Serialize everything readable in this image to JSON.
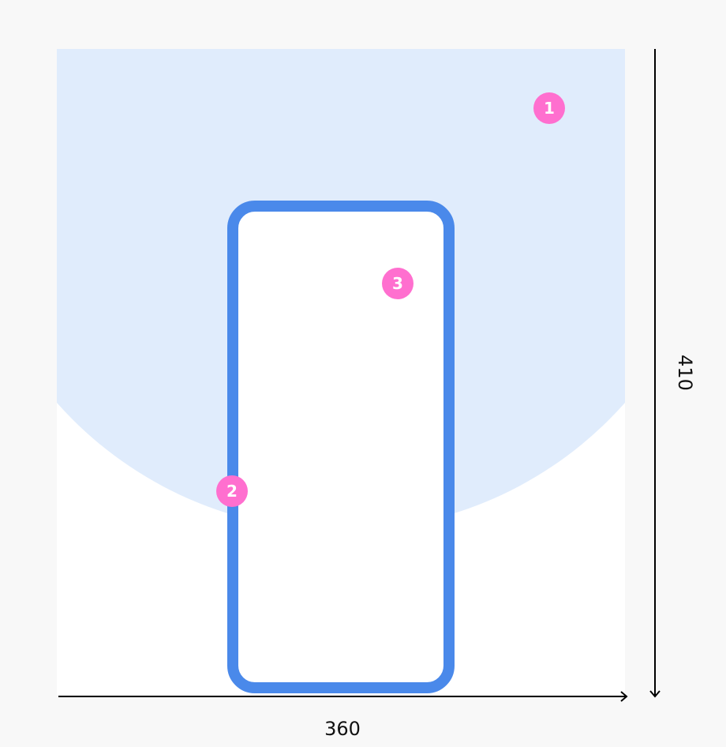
{
  "colors": {
    "background": "#f8f8f8",
    "canvas": "#ffffff",
    "circle_fill": "#e0ecfc",
    "device_stroke": "#4a89ea",
    "badge": "#ff6fcf",
    "arrow": "#000000"
  },
  "dimensions": {
    "width_label": "360",
    "height_label": "410"
  },
  "badges": [
    {
      "label": "1"
    },
    {
      "label": "2"
    },
    {
      "label": "3"
    }
  ]
}
